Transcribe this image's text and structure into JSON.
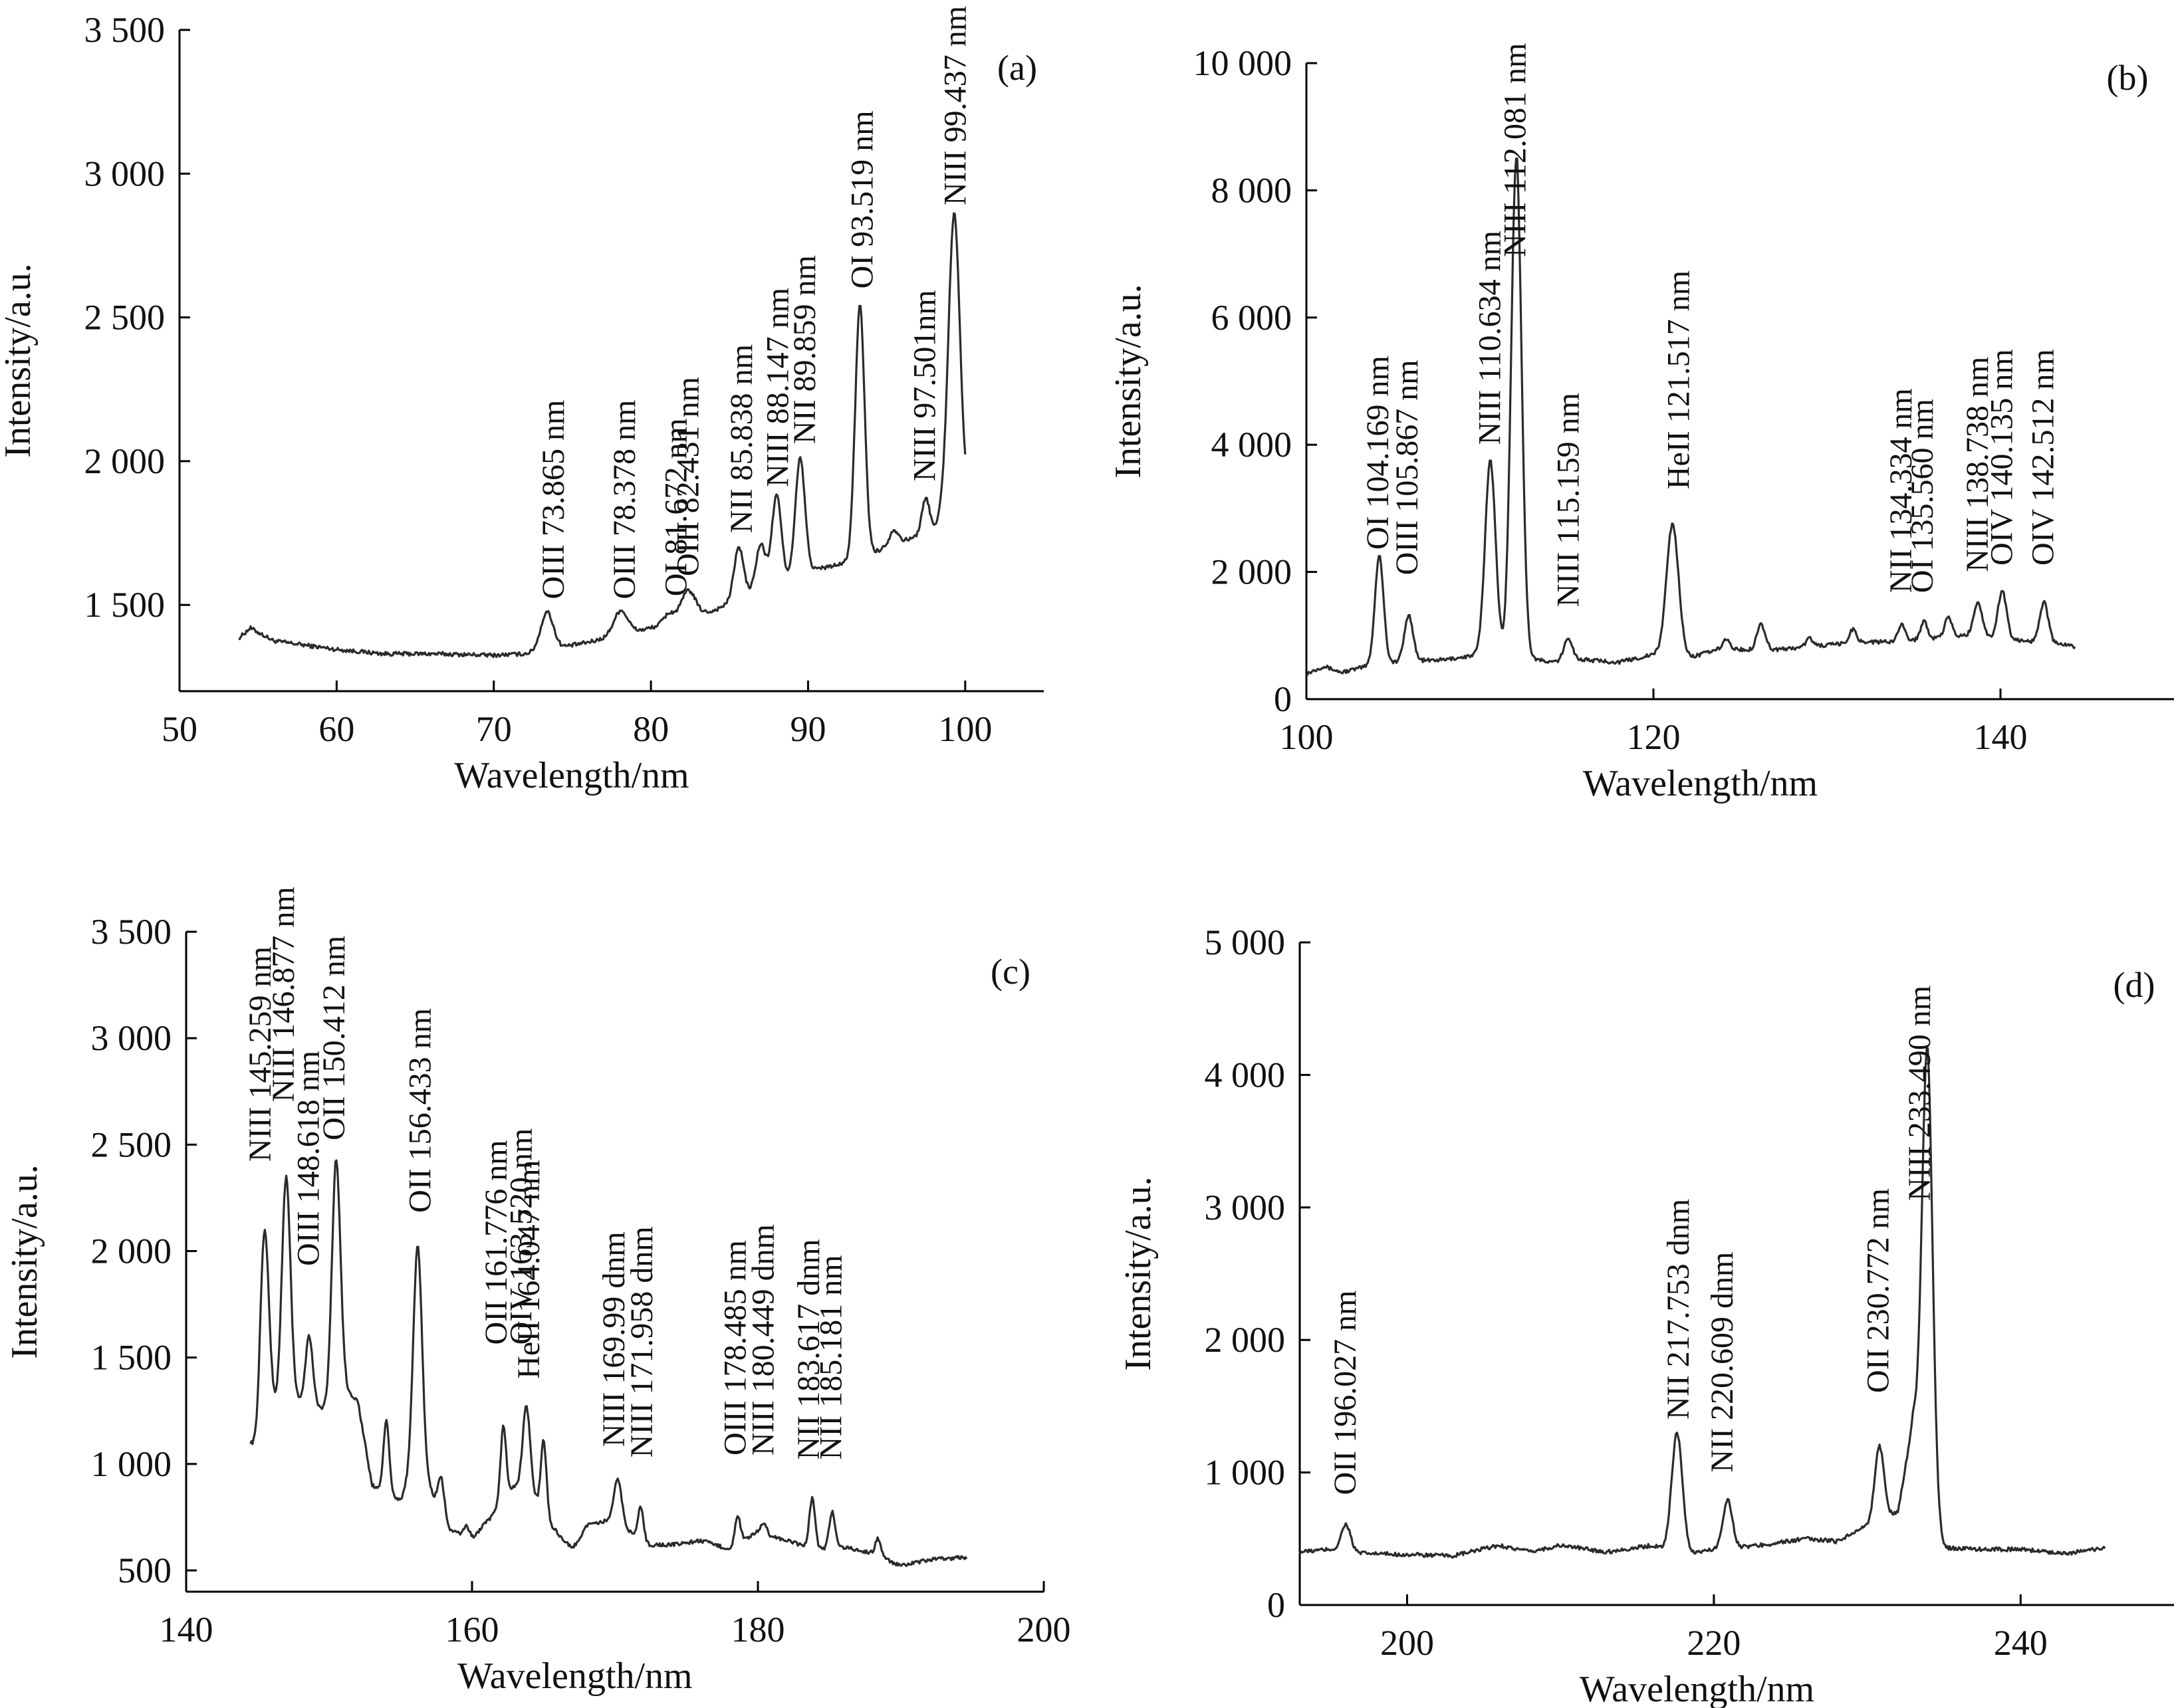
{
  "colors": {
    "line": "#2b2b2b",
    "axis": "#000000",
    "text": "#111111"
  },
  "chart_data": [
    {
      "type": "line",
      "panel": "(a)",
      "xlabel": "Wavelength/nm",
      "ylabel": "Intensity/a.u.",
      "xlim": [
        50,
        105
      ],
      "ylim": [
        1200,
        3500
      ],
      "xticks": [
        50,
        60,
        70,
        80,
        90,
        100
      ],
      "xtick_labels": [
        "50",
        "60",
        "70",
        "80",
        "90",
        "100"
      ],
      "yticks": [
        1500,
        2000,
        2500,
        3000,
        3500
      ],
      "ytick_labels": [
        "1 500",
        "2 000",
        "2 500",
        "3 000",
        "3 500"
      ],
      "baseline": [
        [
          53.8,
          1385
        ],
        [
          54.5,
          1420
        ],
        [
          56,
          1375
        ],
        [
          60,
          1345
        ],
        [
          63,
          1330
        ],
        [
          66,
          1330
        ],
        [
          70,
          1325
        ],
        [
          72,
          1330
        ],
        [
          76,
          1370
        ],
        [
          80,
          1420
        ],
        [
          84,
          1480
        ],
        [
          87,
          1560
        ],
        [
          90,
          1620
        ],
        [
          92,
          1640
        ],
        [
          94,
          1680
        ],
        [
          96,
          1720
        ],
        [
          98,
          1760
        ],
        [
          99,
          1900
        ],
        [
          100,
          1890
        ]
      ],
      "peaks": [
        {
          "x": 73.4,
          "y": 1475,
          "w": 0.4
        },
        {
          "x": 78.1,
          "y": 1480,
          "w": 0.45
        },
        {
          "x": 81.2,
          "y": 1470,
          "w": 0.35
        },
        {
          "x": 82.4,
          "y": 1550,
          "w": 0.45
        },
        {
          "x": 85.6,
          "y": 1700,
          "w": 0.3
        },
        {
          "x": 87.0,
          "y": 1710,
          "w": 0.3
        },
        {
          "x": 88.0,
          "y": 1880,
          "w": 0.3
        },
        {
          "x": 89.5,
          "y": 2010,
          "w": 0.3
        },
        {
          "x": 93.3,
          "y": 2540,
          "w": 0.3
        },
        {
          "x": 95.5,
          "y": 1760,
          "w": 0.3
        },
        {
          "x": 97.5,
          "y": 1870,
          "w": 0.25
        },
        {
          "x": 99.3,
          "y": 2860,
          "w": 0.35
        }
      ],
      "annotations": [
        {
          "text": "OIII 73.865 nm",
          "x": 73.865,
          "y": 1520
        },
        {
          "text": "OIII 78.378 nm",
          "x": 78.378,
          "y": 1520
        },
        {
          "text": "OI 81.672 nm",
          "x": 81.672,
          "y": 1530
        },
        {
          "text": "OIII 82.431 nm",
          "x": 82.431,
          "y": 1600
        },
        {
          "text": "NII 85.838 nm",
          "x": 85.838,
          "y": 1750
        },
        {
          "text": "NIII 88.147 nm",
          "x": 88.147,
          "y": 1910
        },
        {
          "text": "NII 89.859 nm",
          "x": 89.859,
          "y": 2060
        },
        {
          "text": "OI 93.519 nm",
          "x": 93.519,
          "y": 2600
        },
        {
          "text": "NIII 97.501nm",
          "x": 97.501,
          "y": 1930
        },
        {
          "text": "NIII 99.437 nm",
          "x": 99.437,
          "y": 2890
        }
      ],
      "tag": "(a)"
    },
    {
      "type": "line",
      "panel": "(b)",
      "xlabel": "Wavelength/nm",
      "ylabel": "Intensity/a.u.",
      "xlim": [
        100,
        150
      ],
      "ylim": [
        0,
        10000
      ],
      "xticks": [
        100,
        120,
        140
      ],
      "xtick_labels": [
        "100",
        "120",
        "140"
      ],
      "yticks": [
        0,
        2000,
        4000,
        6000,
        8000,
        10000
      ],
      "ytick_labels": [
        "0",
        "2 000",
        "4 000",
        "6 000",
        "8 000",
        "10 000"
      ],
      "baseline": [
        [
          100,
          400
        ],
        [
          101,
          520
        ],
        [
          102,
          420
        ],
        [
          104,
          550
        ],
        [
          106,
          600
        ],
        [
          108,
          620
        ],
        [
          110,
          700
        ],
        [
          112,
          700
        ],
        [
          114,
          580
        ],
        [
          116,
          620
        ],
        [
          118,
          580
        ],
        [
          120,
          700
        ],
        [
          122,
          650
        ],
        [
          124,
          800
        ],
        [
          126,
          760
        ],
        [
          128,
          800
        ],
        [
          130,
          850
        ],
        [
          132,
          900
        ],
        [
          134,
          900
        ],
        [
          136,
          950
        ],
        [
          138,
          1000
        ],
        [
          140,
          950
        ],
        [
          142,
          900
        ],
        [
          144,
          850
        ],
        [
          144.3,
          800
        ]
      ],
      "peaks": [
        {
          "x": 104.2,
          "y": 2250,
          "w": 0.25
        },
        {
          "x": 105.9,
          "y": 1320,
          "w": 0.25
        },
        {
          "x": 110.6,
          "y": 3750,
          "w": 0.3
        },
        {
          "x": 112.1,
          "y": 8500,
          "w": 0.3
        },
        {
          "x": 115.1,
          "y": 950,
          "w": 0.25
        },
        {
          "x": 121.1,
          "y": 2750,
          "w": 0.35
        },
        {
          "x": 124.2,
          "y": 930,
          "w": 0.2
        },
        {
          "x": 126.2,
          "y": 1180,
          "w": 0.25
        },
        {
          "x": 129.0,
          "y": 960,
          "w": 0.2
        },
        {
          "x": 131.5,
          "y": 1100,
          "w": 0.2
        },
        {
          "x": 134.3,
          "y": 1190,
          "w": 0.2
        },
        {
          "x": 135.6,
          "y": 1230,
          "w": 0.2
        },
        {
          "x": 137.0,
          "y": 1300,
          "w": 0.2
        },
        {
          "x": 138.7,
          "y": 1520,
          "w": 0.25
        },
        {
          "x": 140.1,
          "y": 1700,
          "w": 0.25
        },
        {
          "x": 142.5,
          "y": 1520,
          "w": 0.25
        }
      ],
      "annotations": [
        {
          "text": "OI 104.169 nm",
          "x": 104.169,
          "y": 2350
        },
        {
          "text": "OIII 105.867 nm",
          "x": 105.867,
          "y": 1950
        },
        {
          "text": "NIII 110.634 nm",
          "x": 110.634,
          "y": 4000
        },
        {
          "text": "NIII 112.081 nm",
          "x": 112.081,
          "y": 6950
        },
        {
          "text": "NIII 115.159 nm",
          "x": 115.159,
          "y": 1450
        },
        {
          "text": "HeII 121.517 nm",
          "x": 121.517,
          "y": 3300
        },
        {
          "text": "NII 134.334 nm",
          "x": 134.334,
          "y": 1670
        },
        {
          "text": "OI 135.560 nm",
          "x": 135.56,
          "y": 1670
        },
        {
          "text": "NIII 138.738 nm",
          "x": 138.738,
          "y": 2000
        },
        {
          "text": "OIV 140.135 nm",
          "x": 140.135,
          "y": 2100
        },
        {
          "text": "OIV 142.512 nm",
          "x": 142.512,
          "y": 2100
        }
      ],
      "tag": "(b)"
    },
    {
      "type": "line",
      "panel": "(c)",
      "xlabel": "Wavelength/nm",
      "ylabel": "Intensity/a.u.",
      "xlim": [
        140,
        200
      ],
      "ylim": [
        400,
        3500
      ],
      "xticks": [
        140,
        160,
        180,
        200
      ],
      "xtick_labels": [
        "140",
        "160",
        "180",
        "200"
      ],
      "yticks": [
        500,
        1000,
        1500,
        2000,
        2500,
        3000,
        3500
      ],
      "ytick_labels": [
        "500",
        "1 000",
        "1 500",
        "2 000",
        "2 500",
        "3 000",
        "3 500"
      ],
      "baseline": [
        [
          144.5,
          1100
        ],
        [
          145,
          1050
        ],
        [
          146,
          1250
        ],
        [
          148,
          1300
        ],
        [
          150,
          1250
        ],
        [
          151,
          1350
        ],
        [
          152,
          1300
        ],
        [
          153,
          900
        ],
        [
          155,
          830
        ],
        [
          156,
          1000
        ],
        [
          157,
          900
        ],
        [
          158,
          700
        ],
        [
          160,
          650
        ],
        [
          162,
          800
        ],
        [
          163,
          900
        ],
        [
          164,
          900
        ],
        [
          165,
          750
        ],
        [
          167,
          600
        ],
        [
          168,
          700
        ],
        [
          170,
          750
        ],
        [
          172,
          620
        ],
        [
          174,
          620
        ],
        [
          176,
          640
        ],
        [
          178,
          600
        ],
        [
          180,
          680
        ],
        [
          182,
          640
        ],
        [
          184,
          600
        ],
        [
          186,
          610
        ],
        [
          188,
          580
        ],
        [
          190,
          520
        ],
        [
          192,
          550
        ],
        [
          194,
          560
        ],
        [
          194.6,
          560
        ]
      ],
      "peaks": [
        {
          "x": 145.5,
          "y": 2100,
          "w": 0.3
        },
        {
          "x": 147.0,
          "y": 2350,
          "w": 0.3
        },
        {
          "x": 148.6,
          "y": 1600,
          "w": 0.25
        },
        {
          "x": 150.5,
          "y": 2420,
          "w": 0.3
        },
        {
          "x": 154.0,
          "y": 1200,
          "w": 0.2
        },
        {
          "x": 156.2,
          "y": 2020,
          "w": 0.3
        },
        {
          "x": 157.8,
          "y": 940,
          "w": 0.25
        },
        {
          "x": 159.6,
          "y": 710,
          "w": 0.2
        },
        {
          "x": 162.2,
          "y": 1180,
          "w": 0.2
        },
        {
          "x": 163.8,
          "y": 1270,
          "w": 0.25
        },
        {
          "x": 165.0,
          "y": 1110,
          "w": 0.2
        },
        {
          "x": 168.3,
          "y": 720,
          "w": 0.2
        },
        {
          "x": 170.2,
          "y": 930,
          "w": 0.25
        },
        {
          "x": 171.8,
          "y": 800,
          "w": 0.2
        },
        {
          "x": 178.6,
          "y": 750,
          "w": 0.2
        },
        {
          "x": 180.4,
          "y": 720,
          "w": 0.2
        },
        {
          "x": 183.8,
          "y": 840,
          "w": 0.2
        },
        {
          "x": 185.2,
          "y": 780,
          "w": 0.2
        },
        {
          "x": 188.4,
          "y": 650,
          "w": 0.2
        }
      ],
      "annotations": [
        {
          "text": "NIII 145.259 nm",
          "x": 145.259,
          "y": 2420
        },
        {
          "text": "NIII 146.877 nm",
          "x": 146.877,
          "y": 2700
        },
        {
          "text": "OIII 148.618 nm",
          "x": 148.618,
          "y": 1930
        },
        {
          "text": "OII 150.412 nm",
          "x": 150.412,
          "y": 2520
        },
        {
          "text": "OII 156.433 nm",
          "x": 156.433,
          "y": 2180
        },
        {
          "text": "OII 161.776 nm",
          "x": 161.776,
          "y": 1560
        },
        {
          "text": "OIV 163.520 nm",
          "x": 163.52,
          "y": 1560
        },
        {
          "text": "HeII 164.047 nm",
          "x": 164.047,
          "y": 1400
        },
        {
          "text": "NIII 169.99 dnm",
          "x": 169.99,
          "y": 1080
        },
        {
          "text": "NIII 171.958 dnm",
          "x": 171.958,
          "y": 1030
        },
        {
          "text": "OIII 178.485 nm",
          "x": 178.485,
          "y": 1040
        },
        {
          "text": "NIII 180.449 dnm",
          "x": 180.449,
          "y": 1040
        },
        {
          "text": "NII 183.617 dnm",
          "x": 183.617,
          "y": 1020
        },
        {
          "text": "NII 185.181 nm",
          "x": 185.181,
          "y": 1020
        }
      ],
      "tag": "(c)"
    },
    {
      "type": "line",
      "panel": "(d)",
      "xlabel": "Wavelength/nm",
      "ylabel": "Intensity/a.u.",
      "xlim": [
        193,
        250
      ],
      "ylim": [
        0,
        5000
      ],
      "xticks": [
        200,
        220,
        240
      ],
      "xtick_labels": [
        "200",
        "220",
        "240"
      ],
      "yticks": [
        0,
        1000,
        2000,
        3000,
        4000,
        5000
      ],
      "ytick_labels": [
        "0",
        "1 000",
        "2 000",
        "3 000",
        "4 000",
        "5 000"
      ],
      "baseline": [
        [
          193,
          400
        ],
        [
          195,
          420
        ],
        [
          197,
          390
        ],
        [
          200,
          380
        ],
        [
          203,
          370
        ],
        [
          206,
          450
        ],
        [
          208,
          400
        ],
        [
          210,
          450
        ],
        [
          213,
          400
        ],
        [
          216,
          450
        ],
        [
          218,
          380
        ],
        [
          220,
          420
        ],
        [
          223,
          450
        ],
        [
          226,
          500
        ],
        [
          228,
          480
        ],
        [
          230,
          600
        ],
        [
          232,
          700
        ],
        [
          233,
          1400
        ],
        [
          234,
          600
        ],
        [
          235,
          430
        ],
        [
          238,
          420
        ],
        [
          240,
          420
        ],
        [
          243,
          390
        ],
        [
          245,
          420
        ],
        [
          245.5,
          430
        ]
      ],
      "peaks": [
        {
          "x": 196.0,
          "y": 610,
          "w": 0.3
        },
        {
          "x": 217.6,
          "y": 1300,
          "w": 0.35
        },
        {
          "x": 220.9,
          "y": 800,
          "w": 0.3
        },
        {
          "x": 230.8,
          "y": 1200,
          "w": 0.3
        },
        {
          "x": 233.9,
          "y": 4200,
          "w": 0.35
        }
      ],
      "annotations": [
        {
          "text": "OII 196.027 nm",
          "x": 196.027,
          "y": 830
        },
        {
          "text": "NII 217.753 dnm",
          "x": 217.753,
          "y": 1400
        },
        {
          "text": "NII 220.609 dnm",
          "x": 220.609,
          "y": 1000
        },
        {
          "text": "OII 230.772 nm",
          "x": 230.772,
          "y": 1600
        },
        {
          "text": "NIII 233.490 nm",
          "x": 233.49,
          "y": 3050
        }
      ],
      "tag": "(d)"
    }
  ]
}
